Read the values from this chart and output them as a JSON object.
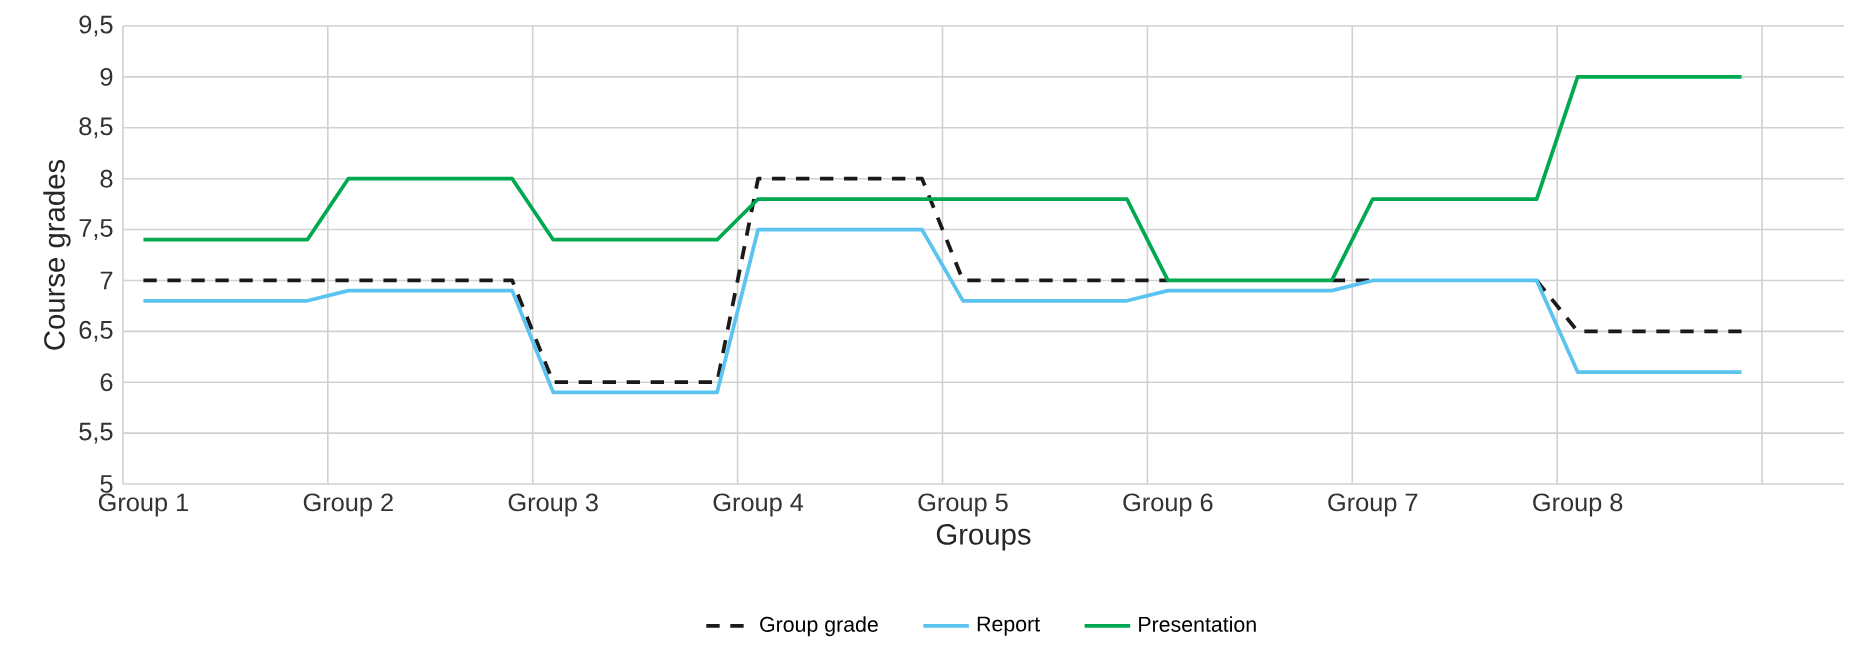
{
  "chart_data": {
    "type": "line",
    "xlabel": "Groups",
    "ylabel": "Course grades",
    "categories": [
      "Group 1",
      null,
      null,
      null,
      null,
      "Group 2",
      null,
      null,
      null,
      null,
      "Group 3",
      null,
      null,
      null,
      null,
      "Group 4",
      null,
      null,
      null,
      null,
      "Group 5",
      null,
      null,
      null,
      null,
      "Group 6",
      null,
      null,
      null,
      null,
      "Group 7",
      null,
      null,
      null,
      null,
      "Group 8",
      null,
      null,
      null,
      null
    ],
    "series": [
      {
        "name": "Group grade",
        "color": "#1a1a1a",
        "line_style": "dashed",
        "values": [
          7,
          7,
          7,
          7,
          7,
          7,
          7,
          7,
          7,
          7,
          6,
          6,
          6,
          6,
          6,
          8,
          8,
          8,
          8,
          8,
          7,
          7,
          7,
          7,
          7,
          7,
          null,
          null,
          null,
          7,
          7,
          null,
          null,
          null,
          7,
          6.5,
          6.5,
          6.5,
          6.5,
          6.5
        ]
      },
      {
        "name": "Report",
        "color": "#5bc3f0",
        "line_style": "solid",
        "values": [
          6.8,
          6.8,
          6.8,
          6.8,
          6.8,
          6.9,
          6.9,
          6.9,
          6.9,
          6.9,
          5.9,
          5.9,
          5.9,
          5.9,
          5.9,
          7.5,
          7.5,
          7.5,
          7.5,
          7.5,
          6.8,
          6.8,
          6.8,
          6.8,
          6.8,
          6.9,
          6.9,
          6.9,
          6.9,
          6.9,
          7,
          7,
          7,
          7,
          7,
          6.1,
          6.1,
          6.1,
          6.1,
          6.1
        ]
      },
      {
        "name": "Presentation",
        "color": "#00a84f",
        "line_style": "solid",
        "values": [
          7.4,
          7.4,
          7.4,
          7.4,
          7.4,
          8,
          8,
          8,
          8,
          8,
          7.4,
          7.4,
          7.4,
          7.4,
          7.4,
          7.8,
          7.8,
          7.8,
          7.8,
          7.8,
          7.8,
          7.8,
          7.8,
          7.8,
          7.8,
          7,
          7,
          7,
          7,
          7,
          7.8,
          7.8,
          7.8,
          7.8,
          7.8,
          9,
          9,
          9,
          9,
          9
        ]
      }
    ],
    "ylim": [
      5,
      9.5
    ],
    "yticks": [
      5,
      {
        "value": 5.5,
        "label": "5,5"
      },
      6,
      {
        "value": 6.5,
        "label": "6,5"
      },
      7,
      {
        "value": 7.5,
        "label": "7,5"
      },
      8,
      {
        "value": 8.5,
        "label": "8,5"
      },
      9,
      {
        "value": 9.5,
        "label": "9,5"
      }
    ],
    "grid": true,
    "legend": "bottom",
    "marker": "none"
  }
}
